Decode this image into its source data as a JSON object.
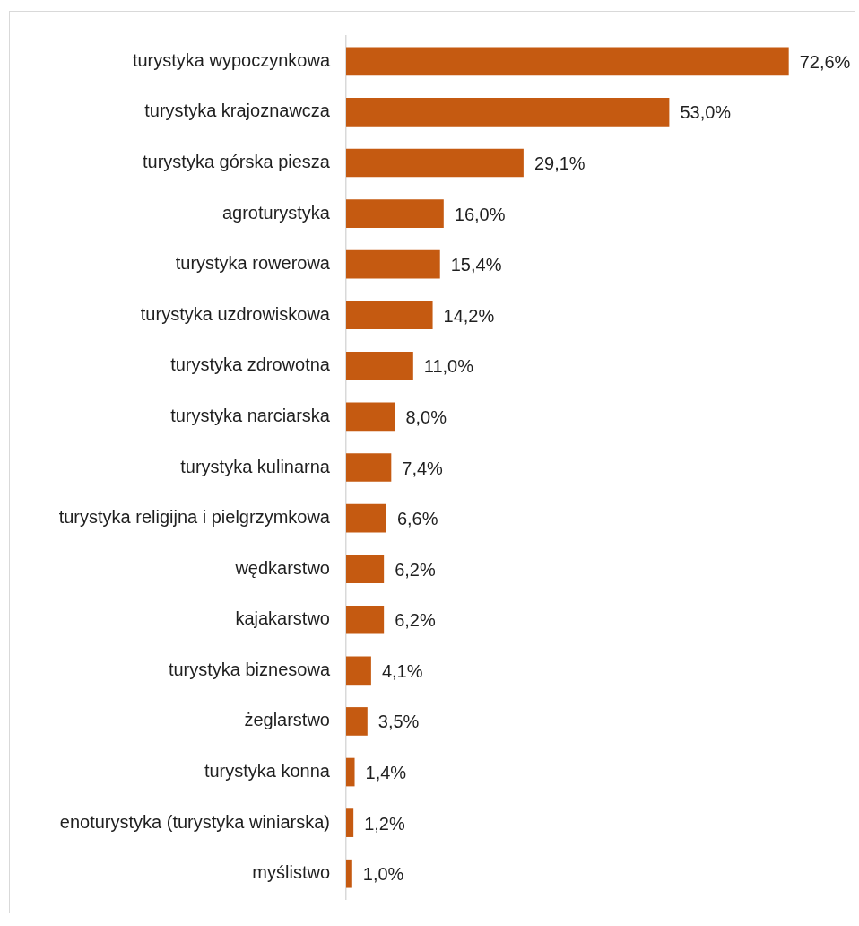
{
  "chart_data": {
    "type": "bar",
    "orientation": "horizontal",
    "tick_labels": "y",
    "categories": [
      "turystyka wypoczynkowa",
      "turystyka krajoznawcza",
      "turystyka górska piesza",
      "agroturystyka",
      "turystyka rowerowa",
      "turystyka uzdrowiskowa",
      "turystyka zdrowotna",
      "turystyka narciarska",
      "turystyka kulinarna",
      "turystyka religijna i pielgrzymkowa",
      "wędkarstwo",
      "kajakarstwo",
      "turystyka biznesowa",
      "żeglarstwo",
      "turystyka konna",
      "enoturystyka (turystyka winiarska)",
      "myślistwo"
    ],
    "values": [
      72.6,
      53.0,
      29.1,
      16.0,
      15.4,
      14.2,
      11.0,
      8.0,
      7.4,
      6.6,
      6.2,
      6.2,
      4.1,
      3.5,
      1.4,
      1.2,
      1.0
    ],
    "value_labels": [
      "72,6%",
      "53,0%",
      "29,1%",
      "16,0%",
      "15,4%",
      "14,2%",
      "11,0%",
      "8,0%",
      "7,4%",
      "6,6%",
      "6,2%",
      "6,2%",
      "4,1%",
      "3,5%",
      "1,4%",
      "1,2%",
      "1,0%"
    ],
    "color": "#c55a11"
  }
}
